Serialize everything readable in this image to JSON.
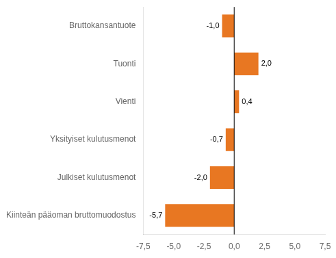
{
  "chart_data": {
    "type": "bar",
    "orientation": "horizontal",
    "categories": [
      "Kiinteän pääoman bruttomuodostus",
      "Julkiset kulutusmenot",
      "Yksityiset kulutusmenot",
      "Vienti",
      "Tuonti",
      "Bruttokansantuote"
    ],
    "values": [
      -5.7,
      -2.0,
      -0.7,
      0.4,
      2.0,
      -1.0
    ],
    "value_labels": [
      "-5,7",
      "-2,0",
      "-0,7",
      "0,4",
      "2,0",
      "-1,0"
    ],
    "data_labels": true,
    "color": "#E87722",
    "xlim": [
      -7.5,
      7.5
    ],
    "xticks": [
      {
        "value": -7.5,
        "label": "-7,5"
      },
      {
        "value": -5.0,
        "label": "-5,0"
      },
      {
        "value": -2.5,
        "label": "-2,5"
      },
      {
        "value": 0.0,
        "label": "0,0"
      },
      {
        "value": 2.5,
        "label": "2,5"
      },
      {
        "value": 5.0,
        "label": "5,0"
      },
      {
        "value": 7.5,
        "label": "7,5"
      }
    ],
    "grid": false
  }
}
